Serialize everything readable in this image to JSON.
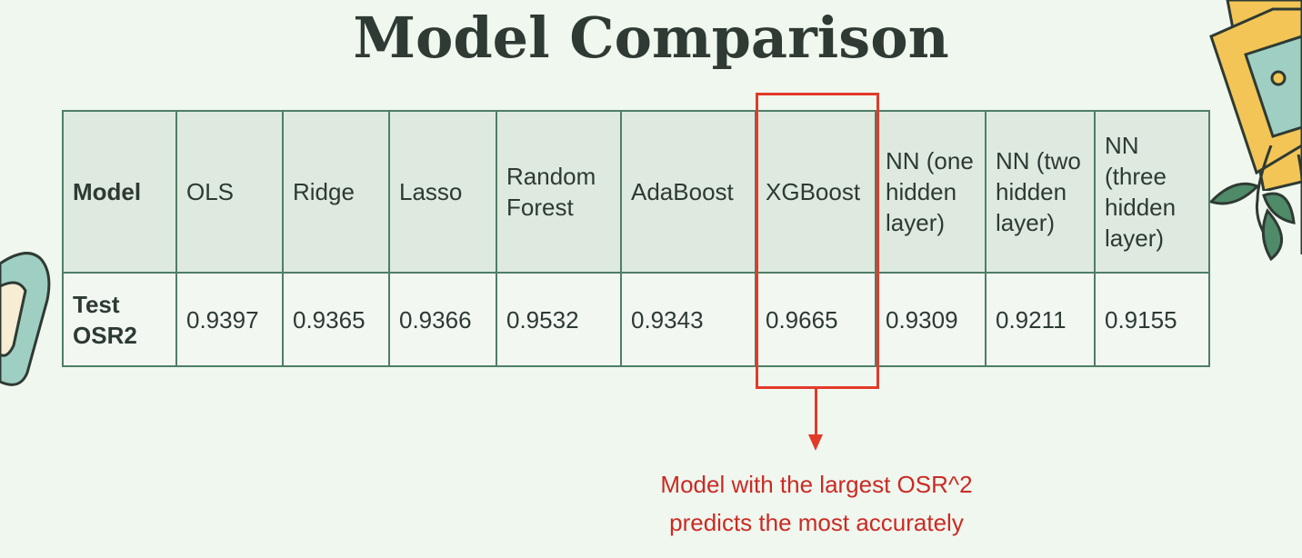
{
  "title": "Model Comparison",
  "table": {
    "header_label": "Model",
    "columns": [
      "OLS",
      "Ridge",
      "Lasso",
      "Random Forest",
      "AdaBoost",
      "XGBoost",
      "NN (one hidden layer)",
      "NN (two hidden layer)",
      "NN (three hidden layer)"
    ],
    "row_label": "Test OSR2",
    "values": [
      "0.9397",
      "0.9365",
      "0.9366",
      "0.9532",
      "0.9343",
      "0.9665",
      "0.9309",
      "0.9211",
      "0.9155"
    ]
  },
  "highlight": {
    "column": "XGBoost",
    "color": "#e23a2a"
  },
  "annotation": {
    "line1": "Model with the largest OSR^2",
    "line2": "predicts the most accurately",
    "color": "#cc2a24"
  },
  "colors": {
    "background": "#eff7ef",
    "table_border": "#4f7e66",
    "header_fill": "#deeadf",
    "title": "#2e3a33"
  },
  "decorations": [
    "tablet-sticker",
    "photo-frame-sticker",
    "leaves-sticker"
  ]
}
